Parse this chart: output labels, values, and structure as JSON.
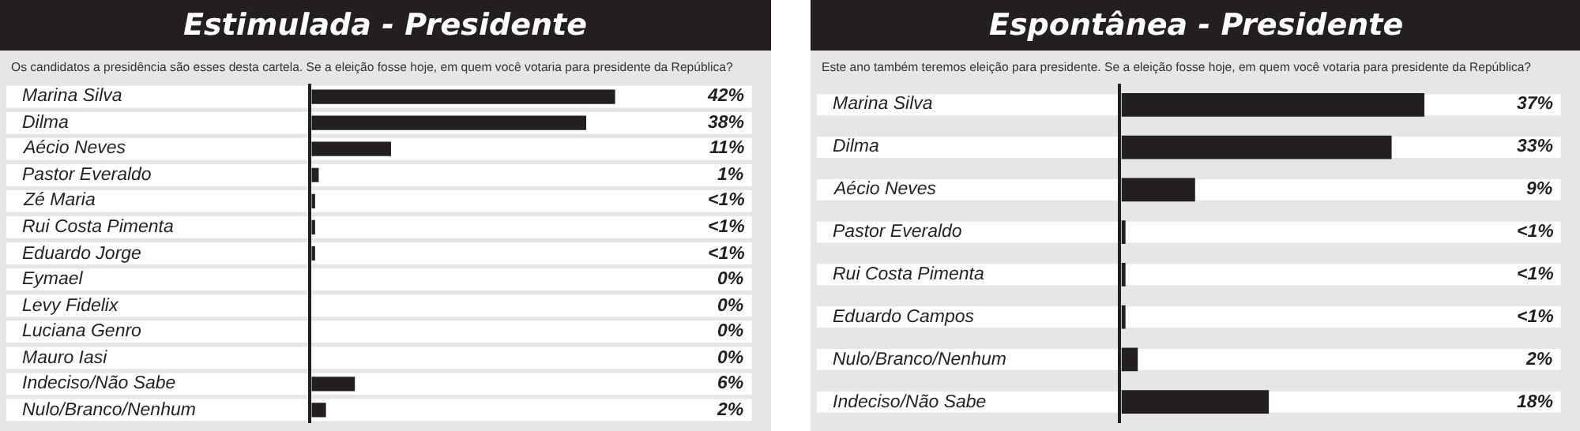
{
  "chart_data": [
    {
      "type": "bar",
      "orientation": "horizontal",
      "title": "Estimulada - Presidente",
      "subtitle": "Os candidatos a presidência são esses desta cartela. Se a eleição fosse hoje, em quem você votaria para presidente da República?",
      "categories": [
        "Marina Silva",
        "Dilma",
        "Aécio Neves",
        "Pastor Everaldo",
        "Zé Maria",
        "Rui Costa Pimenta",
        "Eduardo Jorge",
        "Eymael",
        "Levy Fidelix",
        "Luciana Genro",
        "Mauro Iasi",
        "Indeciso/Não Sabe",
        "Nulo/Branco/Nenhum"
      ],
      "values": [
        42,
        38,
        11,
        1,
        0.5,
        0.5,
        0.5,
        0,
        0,
        0,
        0,
        6,
        2
      ],
      "value_labels": [
        "42%",
        "38%",
        "11%",
        "1%",
        "<1%",
        "<1%",
        "<1%",
        "0%",
        "0%",
        "0%",
        "0%",
        "6%",
        "2%"
      ],
      "color": "#231f20"
    },
    {
      "type": "bar",
      "orientation": "horizontal",
      "title": "Espontânea - Presidente",
      "subtitle": "Este ano também teremos eleição para presidente. Se a eleição fosse hoje, em quem você votaria para presidente da República?",
      "categories": [
        "Marina Silva",
        "Dilma",
        "Aécio Neves",
        "Pastor Everaldo",
        "Rui Costa Pimenta",
        "Eduardo Campos",
        "Nulo/Branco/Nenhum",
        "Indeciso/Não Sabe"
      ],
      "values": [
        37,
        33,
        9,
        0.5,
        0.5,
        0.5,
        2,
        18
      ],
      "value_labels": [
        "37%",
        "33%",
        "9%",
        "<1%",
        "<1%",
        "<1%",
        "2%",
        "18%"
      ],
      "color": "#231f20"
    }
  ]
}
